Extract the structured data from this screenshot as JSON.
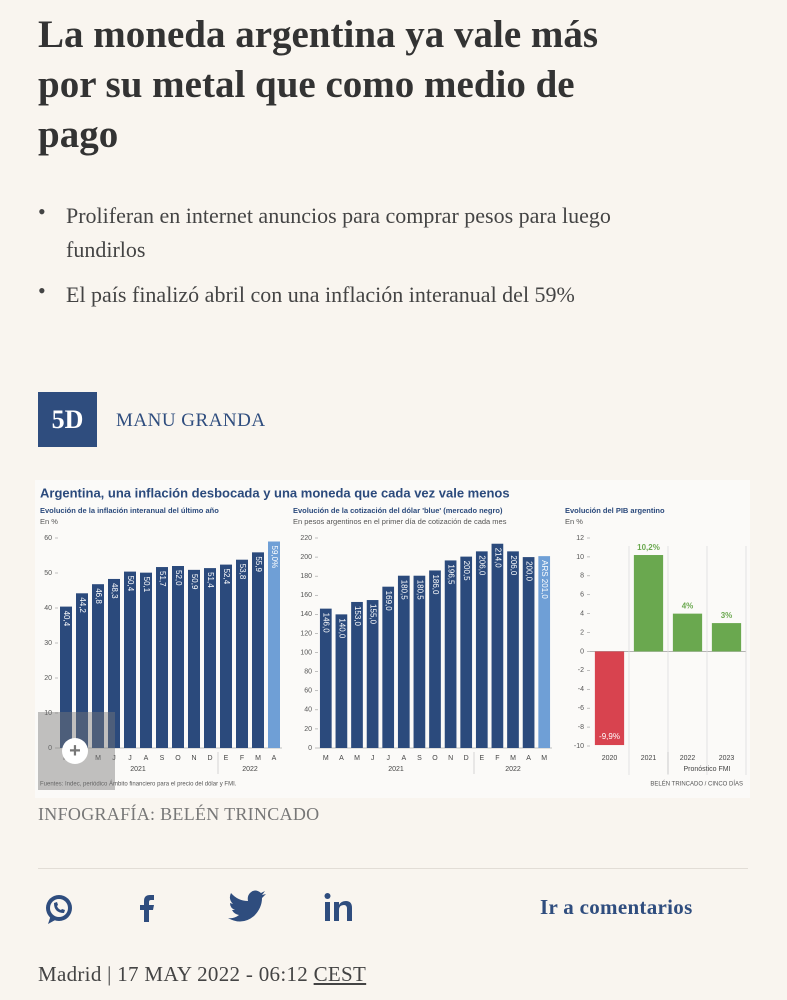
{
  "header": {
    "title": "La moneda argentina ya vale más por su metal que como medio de pago",
    "bullets": [
      "Proliferan en internet anuncios para comprar pesos para luego fundirlos",
      "El país finalizó abril con una inflación interanual del 59%"
    ]
  },
  "author": {
    "badge": "5D",
    "name": "MANU GRANDA"
  },
  "infographic": {
    "title": "Argentina, una inflación desbocada y una moneda que cada vez vale menos",
    "charts": [
      {
        "type": "bar",
        "title": "Evolución de la inflación interanual del último año",
        "subtitle": "En %",
        "categories": [
          "M",
          "A",
          "M",
          "J",
          "J",
          "A",
          "S",
          "O",
          "N",
          "D",
          "E",
          "F",
          "M",
          "A"
        ],
        "values": [
          40.4,
          44.2,
          46.8,
          48.3,
          50.4,
          50.1,
          51.7,
          52.0,
          50.9,
          51.4,
          52.4,
          53.8,
          55.9,
          59.0
        ],
        "value_labels": [
          "40,4",
          "44,2",
          "46,8",
          "48,3",
          "50,4",
          "50,1",
          "51,7",
          "52,0",
          "50,9",
          "51,4",
          "52,4",
          "53,8",
          "55,9",
          "59,0%"
        ],
        "colors": [
          "#2b4a7c",
          "#2b4a7c",
          "#2b4a7c",
          "#2b4a7c",
          "#2b4a7c",
          "#2b4a7c",
          "#2b4a7c",
          "#2b4a7c",
          "#2b4a7c",
          "#2b4a7c",
          "#2b4a7c",
          "#2b4a7c",
          "#2b4a7c",
          "#6f9fd6"
        ],
        "ylim": [
          0,
          60
        ],
        "yticks": [
          0,
          10,
          20,
          30,
          40,
          50,
          60
        ],
        "group_labels": [
          "2021",
          "2022"
        ]
      },
      {
        "type": "bar",
        "title": "Evolución de la cotización del dólar 'blue' (mercado negro)",
        "subtitle": "En pesos argentinos en el primer día de cotización de cada mes",
        "categories": [
          "M",
          "A",
          "M",
          "J",
          "J",
          "A",
          "S",
          "O",
          "N",
          "D",
          "E",
          "F",
          "M",
          "A",
          "M"
        ],
        "values": [
          146.0,
          140.0,
          153.0,
          155.0,
          169.0,
          180.5,
          180.5,
          186.0,
          196.5,
          200.5,
          206.0,
          214.0,
          206.0,
          200.0,
          201.0
        ],
        "value_labels": [
          "146,0",
          "140,0",
          "153,0",
          "155,0",
          "169,0",
          "180,5",
          "180,5",
          "186,0",
          "196,5",
          "200,5",
          "206,0",
          "214,0",
          "206,0",
          "200,0",
          "ARS 201,0"
        ],
        "colors": [
          "#2b4a7c",
          "#2b4a7c",
          "#2b4a7c",
          "#2b4a7c",
          "#2b4a7c",
          "#2b4a7c",
          "#2b4a7c",
          "#2b4a7c",
          "#2b4a7c",
          "#2b4a7c",
          "#2b4a7c",
          "#2b4a7c",
          "#2b4a7c",
          "#2b4a7c",
          "#6f9fd6"
        ],
        "ylim": [
          0,
          220
        ],
        "yticks": [
          0,
          20,
          40,
          60,
          80,
          100,
          120,
          140,
          160,
          180,
          200,
          220
        ],
        "group_labels": [
          "2021",
          "2022"
        ]
      },
      {
        "type": "bar",
        "title": "Evolución del PIB argentino",
        "subtitle": "En %",
        "categories": [
          "2020",
          "2021",
          "2022",
          "2023"
        ],
        "values": [
          -9.9,
          10.2,
          4,
          3
        ],
        "value_labels": [
          "-9,9%",
          "10,2%",
          "4%",
          "3%"
        ],
        "colors": [
          "#d8434f",
          "#6aa84f",
          "#6aa84f",
          "#6aa84f"
        ],
        "ylim": [
          -10,
          12
        ],
        "yticks": [
          -10,
          -8,
          -6,
          -4,
          -2,
          0,
          2,
          4,
          6,
          8,
          10,
          12
        ],
        "group_labels": [
          "Pronóstico FMI"
        ]
      }
    ],
    "sources": "Fuentes: Indec, periódico Ámbito financiero para el precio del dólar y FMI.",
    "credit": "BELÉN TRINCADO / CINCO DÍAS"
  },
  "caption": "INFOGRAFÍA: BELÉN TRINCADO",
  "share": {
    "link": "Ir a comentarios"
  },
  "dateline": {
    "place_date": "Madrid | 17 MAY 2022 - 06:12",
    "timezone": "CEST"
  }
}
